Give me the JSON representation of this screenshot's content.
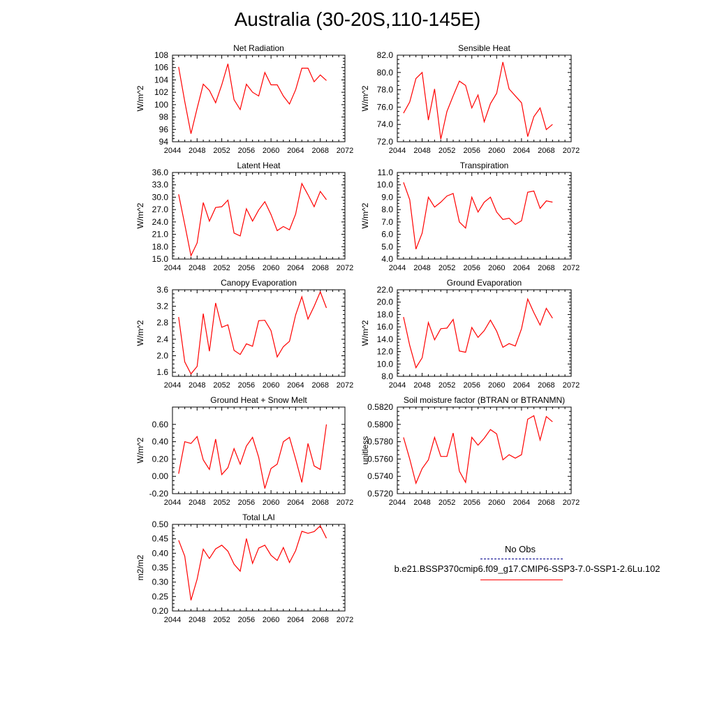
{
  "page": {
    "title": "Australia (30-20S,110-145E)"
  },
  "colors": {
    "model_line": "#ff0000",
    "obs_line": "#00008b",
    "axis": "#000000"
  },
  "legend": {
    "obs_label": "No Obs",
    "model_label": "b.e21.BSSP370cmip6.f09_g17.CMIP6-SSP3-7.0-SSP1-2.6Lu.102"
  },
  "chart_data": [
    {
      "type": "line",
      "title": "Net Radiation",
      "ylabel": "W/m^2",
      "xlim": [
        2044,
        2072
      ],
      "ylim": [
        94,
        108
      ],
      "xticks": [
        "2044",
        "2048",
        "2052",
        "2056",
        "2060",
        "2064",
        "2068",
        "2072"
      ],
      "yticks": [
        "94",
        "96",
        "98",
        "100",
        "102",
        "104",
        "106",
        "108"
      ],
      "x": [
        2045,
        2046,
        2047,
        2048,
        2049,
        2050,
        2051,
        2052,
        2053,
        2054,
        2055,
        2056,
        2057,
        2058,
        2059,
        2060,
        2061,
        2062,
        2063,
        2064,
        2065,
        2066,
        2067,
        2068,
        2069
      ],
      "series": [
        {
          "values": [
            106.1,
            100.5,
            95.3,
            99.4,
            103.3,
            102.3,
            100.3,
            103.2,
            106.6,
            100.8,
            99.2,
            103.3,
            102.0,
            101.4,
            105.2,
            103.2,
            103.2,
            101.4,
            100.1,
            102.4,
            105.9,
            105.9,
            103.7,
            104.8,
            103.9
          ]
        }
      ]
    },
    {
      "type": "line",
      "title": "Sensible Heat",
      "ylabel": "W/m^2",
      "xlim": [
        2044,
        2072
      ],
      "ylim": [
        72.0,
        82.0
      ],
      "xticks": [
        "2044",
        "2048",
        "2052",
        "2056",
        "2060",
        "2064",
        "2068",
        "2072"
      ],
      "yticks": [
        "72.0",
        "74.0",
        "76.0",
        "78.0",
        "80.0",
        "82.0"
      ],
      "x": [
        2045,
        2046,
        2047,
        2048,
        2049,
        2050,
        2051,
        2052,
        2053,
        2054,
        2055,
        2056,
        2057,
        2058,
        2059,
        2060,
        2061,
        2062,
        2063,
        2064,
        2065,
        2066,
        2067,
        2068,
        2069
      ],
      "series": [
        {
          "values": [
            75.3,
            76.6,
            79.3,
            80.0,
            74.5,
            78.1,
            72.3,
            75.5,
            77.3,
            79.0,
            78.5,
            75.9,
            77.4,
            74.3,
            76.4,
            77.6,
            81.2,
            78.1,
            77.3,
            76.5,
            72.6,
            74.9,
            75.9,
            73.4,
            74.0
          ]
        }
      ]
    },
    {
      "type": "line",
      "title": "Latent Heat",
      "ylabel": "W/m^2",
      "xlim": [
        2044,
        2072
      ],
      "ylim": [
        15.0,
        36.0
      ],
      "xticks": [
        "2044",
        "2048",
        "2052",
        "2056",
        "2060",
        "2064",
        "2068",
        "2072"
      ],
      "yticks": [
        "15.0",
        "18.0",
        "21.0",
        "24.0",
        "27.0",
        "30.0",
        "33.0",
        "36.0"
      ],
      "x": [
        2045,
        2046,
        2047,
        2048,
        2049,
        2050,
        2051,
        2052,
        2053,
        2054,
        2055,
        2056,
        2057,
        2058,
        2059,
        2060,
        2061,
        2062,
        2063,
        2064,
        2065,
        2066,
        2067,
        2068,
        2069
      ],
      "series": [
        {
          "values": [
            30.7,
            23.4,
            15.8,
            18.9,
            28.7,
            24.2,
            27.5,
            27.7,
            29.3,
            21.3,
            20.6,
            27.2,
            24.2,
            26.9,
            28.9,
            25.8,
            21.9,
            22.9,
            22.1,
            25.9,
            33.3,
            30.6,
            27.7,
            31.4,
            29.4
          ]
        }
      ]
    },
    {
      "type": "line",
      "title": "Transpiration",
      "ylabel": "W/m^2",
      "xlim": [
        2044,
        2072
      ],
      "ylim": [
        4.0,
        11.0
      ],
      "xticks": [
        "2044",
        "2048",
        "2052",
        "2056",
        "2060",
        "2064",
        "2068",
        "2072"
      ],
      "yticks": [
        "4.0",
        "5.0",
        "6.0",
        "7.0",
        "8.0",
        "9.0",
        "10.0",
        "11.0"
      ],
      "x": [
        2045,
        2046,
        2047,
        2048,
        2049,
        2050,
        2051,
        2052,
        2053,
        2054,
        2055,
        2056,
        2057,
        2058,
        2059,
        2060,
        2061,
        2062,
        2063,
        2064,
        2065,
        2066,
        2067,
        2068,
        2069
      ],
      "series": [
        {
          "values": [
            10.2,
            8.8,
            4.8,
            6.1,
            9.0,
            8.2,
            8.6,
            9.1,
            9.3,
            7.0,
            6.5,
            9.0,
            7.8,
            8.6,
            9.0,
            7.8,
            7.2,
            7.3,
            6.8,
            7.1,
            9.4,
            9.5,
            8.1,
            8.7,
            8.6
          ]
        }
      ]
    },
    {
      "type": "line",
      "title": "Canopy Evaporation",
      "ylabel": "W/m^2",
      "xlim": [
        2044,
        2072
      ],
      "ylim": [
        1.5,
        3.6
      ],
      "xticks": [
        "2044",
        "2048",
        "2052",
        "2056",
        "2060",
        "2064",
        "2068",
        "2072"
      ],
      "yticks": [
        "1.6",
        "2.0",
        "2.4",
        "2.8",
        "3.2",
        "3.6"
      ],
      "x": [
        2045,
        2046,
        2047,
        2048,
        2049,
        2050,
        2051,
        2052,
        2053,
        2054,
        2055,
        2056,
        2057,
        2058,
        2059,
        2060,
        2061,
        2062,
        2063,
        2064,
        2065,
        2066,
        2067,
        2068,
        2069
      ],
      "series": [
        {
          "values": [
            2.94,
            1.85,
            1.56,
            1.74,
            3.02,
            2.11,
            3.28,
            2.69,
            2.75,
            2.13,
            2.03,
            2.29,
            2.23,
            2.85,
            2.86,
            2.61,
            1.97,
            2.22,
            2.35,
            2.99,
            3.43,
            2.89,
            3.2,
            3.55,
            3.16
          ]
        }
      ]
    },
    {
      "type": "line",
      "title": "Ground Evaporation",
      "ylabel": "W/m^2",
      "xlim": [
        2044,
        2072
      ],
      "ylim": [
        8.0,
        22.0
      ],
      "xticks": [
        "2044",
        "2048",
        "2052",
        "2056",
        "2060",
        "2064",
        "2068",
        "2072"
      ],
      "yticks": [
        "8.0",
        "10.0",
        "12.0",
        "14.0",
        "16.0",
        "18.0",
        "20.0",
        "22.0"
      ],
      "x": [
        2045,
        2046,
        2047,
        2048,
        2049,
        2050,
        2051,
        2052,
        2053,
        2054,
        2055,
        2056,
        2057,
        2058,
        2059,
        2060,
        2061,
        2062,
        2063,
        2064,
        2065,
        2066,
        2067,
        2068,
        2069
      ],
      "series": [
        {
          "values": [
            17.6,
            13.0,
            9.4,
            11.0,
            16.7,
            13.9,
            15.7,
            15.8,
            17.2,
            12.1,
            11.9,
            15.9,
            14.3,
            15.4,
            17.1,
            15.3,
            12.7,
            13.3,
            12.9,
            15.7,
            20.5,
            18.3,
            16.3,
            19.0,
            17.4
          ]
        }
      ]
    },
    {
      "type": "line",
      "title": "Ground Heat + Snow Melt",
      "ylabel": "W/m^2",
      "xlim": [
        2044,
        2072
      ],
      "ylim": [
        -0.2,
        0.8
      ],
      "xticks": [
        "2044",
        "2048",
        "2052",
        "2056",
        "2060",
        "2064",
        "2068",
        "2072"
      ],
      "yticks": [
        "-0.20",
        "0.00",
        "0.20",
        "0.40",
        "0.60"
      ],
      "x": [
        2045,
        2046,
        2047,
        2048,
        2049,
        2050,
        2051,
        2052,
        2053,
        2054,
        2055,
        2056,
        2057,
        2058,
        2059,
        2060,
        2061,
        2062,
        2063,
        2064,
        2065,
        2066,
        2067,
        2068,
        2069
      ],
      "series": [
        {
          "values": [
            0.03,
            0.4,
            0.38,
            0.46,
            0.19,
            0.08,
            0.43,
            0.02,
            0.1,
            0.32,
            0.14,
            0.35,
            0.45,
            0.22,
            -0.14,
            0.09,
            0.14,
            0.4,
            0.45,
            0.2,
            -0.07,
            0.38,
            0.12,
            0.08,
            0.6
          ]
        }
      ]
    },
    {
      "type": "line",
      "title": "Soil moisture factor (BTRAN or BTRANMN)",
      "ylabel": "unitless",
      "xlim": [
        2044,
        2072
      ],
      "ylim": [
        0.572,
        0.582
      ],
      "xticks": [
        "2044",
        "2048",
        "2052",
        "2056",
        "2060",
        "2064",
        "2068",
        "2072"
      ],
      "yticks": [
        "0.5720",
        "0.5740",
        "0.5760",
        "0.5780",
        "0.5800",
        "0.5820"
      ],
      "x": [
        2045,
        2046,
        2047,
        2048,
        2049,
        2050,
        2051,
        2052,
        2053,
        2054,
        2055,
        2056,
        2057,
        2058,
        2059,
        2060,
        2061,
        2062,
        2063,
        2064,
        2065,
        2066,
        2067,
        2068,
        2069
      ],
      "series": [
        {
          "values": [
            0.5785,
            0.576,
            0.5732,
            0.5749,
            0.5759,
            0.5785,
            0.5763,
            0.5763,
            0.579,
            0.5746,
            0.5733,
            0.5785,
            0.5776,
            0.5784,
            0.5794,
            0.5789,
            0.5759,
            0.5765,
            0.5761,
            0.5765,
            0.5806,
            0.581,
            0.5782,
            0.5809,
            0.5803
          ]
        }
      ]
    },
    {
      "type": "line",
      "title": "Total LAI",
      "ylabel": "m2/m2",
      "xlim": [
        2044,
        2072
      ],
      "ylim": [
        0.2,
        0.5
      ],
      "xticks": [
        "2044",
        "2048",
        "2052",
        "2056",
        "2060",
        "2064",
        "2068",
        "2072"
      ],
      "yticks": [
        "0.20",
        "0.25",
        "0.30",
        "0.35",
        "0.40",
        "0.45",
        "0.50"
      ],
      "x": [
        2045,
        2046,
        2047,
        2048,
        2049,
        2050,
        2051,
        2052,
        2053,
        2054,
        2055,
        2056,
        2057,
        2058,
        2059,
        2060,
        2061,
        2062,
        2063,
        2064,
        2065,
        2066,
        2067,
        2068,
        2069
      ],
      "series": [
        {
          "values": [
            0.445,
            0.39,
            0.237,
            0.31,
            0.414,
            0.382,
            0.415,
            0.428,
            0.407,
            0.362,
            0.338,
            0.451,
            0.365,
            0.418,
            0.428,
            0.393,
            0.375,
            0.42,
            0.368,
            0.409,
            0.476,
            0.469,
            0.475,
            0.495,
            0.452
          ]
        }
      ]
    }
  ]
}
